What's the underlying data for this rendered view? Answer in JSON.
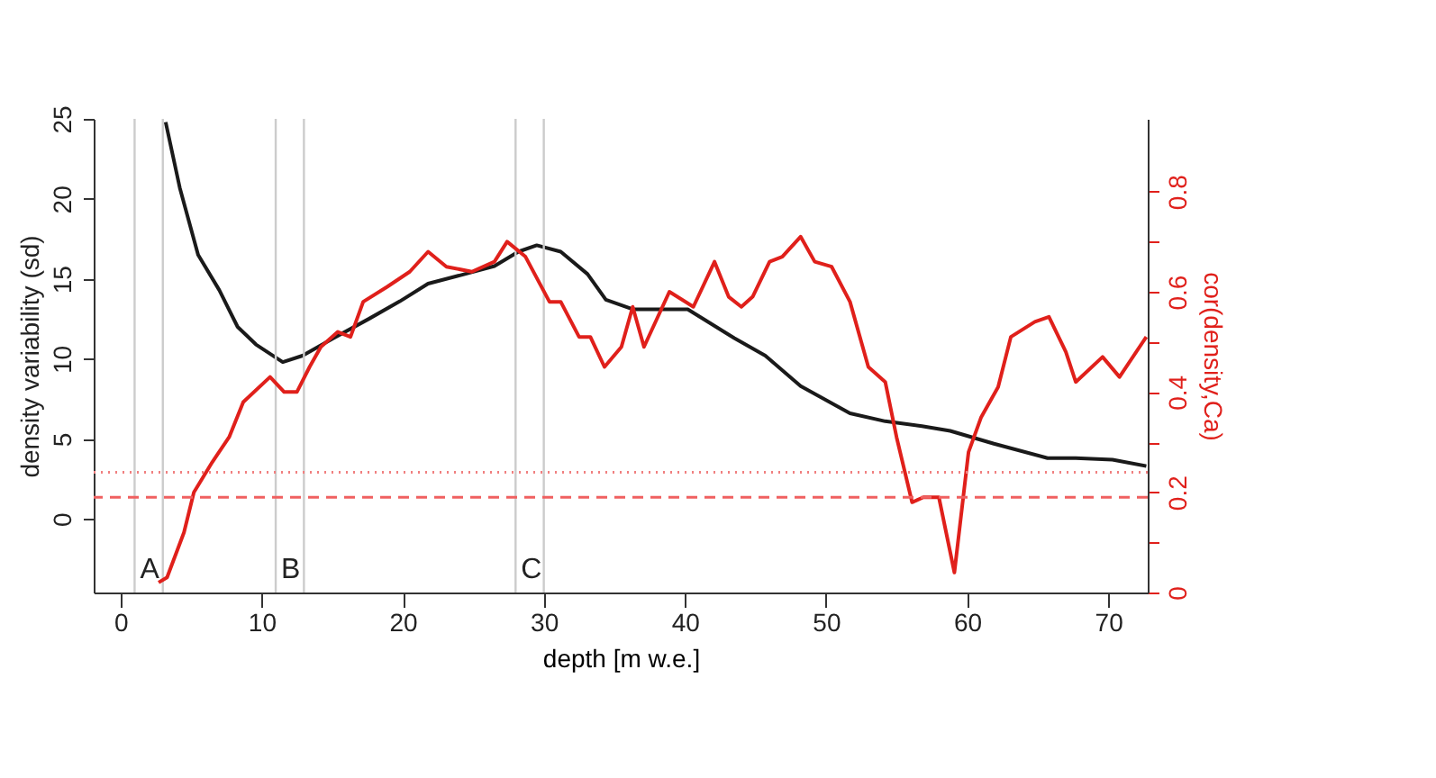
{
  "chart_data": {
    "type": "line",
    "xlabel": "depth [m w.e.]",
    "ylabel": "density variability (sd)",
    "y2label": "cor(density,Ca)",
    "xlim": [
      -1.9,
      72.8
    ],
    "xticks": [
      0,
      10,
      20,
      30,
      40,
      50,
      60,
      70
    ],
    "ylim": [
      -4.6,
      25
    ],
    "yticks": [
      0,
      5,
      10,
      15,
      20,
      25
    ],
    "y2lim": [
      0,
      0.945
    ],
    "y2ticks": [
      0,
      {
        "value": 0.1,
        "label": null
      },
      0.2,
      {
        "value": 0.3,
        "label": null
      },
      0.4,
      {
        "value": 0.5,
        "label": null
      },
      0.6,
      {
        "value": 0.7,
        "label": null
      },
      0.8
    ],
    "grid": false,
    "marker": "none",
    "line_style": "solid",
    "series": [
      {
        "color": "#1a1a1a",
        "x": [
          3.2,
          4.2,
          5.5,
          7.0,
          8.3,
          9.6,
          11.5,
          12.9,
          15.1,
          17.6,
          19.8,
          21.8,
          24.4,
          26.5,
          28.2,
          29.5,
          31.2,
          33.1,
          34.4,
          36.3,
          40.2,
          43.5,
          45.7,
          48.2,
          51.7,
          54.2,
          56.8,
          58.8,
          61.9,
          65.7,
          67.7,
          70.3,
          72.7
        ],
        "values": [
          24.8,
          20.7,
          16.5,
          14.3,
          12.0,
          10.9,
          9.8,
          10.2,
          11.3,
          12.5,
          13.6,
          14.7,
          15.3,
          15.8,
          16.7,
          17.1,
          16.7,
          15.3,
          13.7,
          13.1,
          13.1,
          11.3,
          10.2,
          8.3,
          6.6,
          6.1,
          5.8,
          5.5,
          4.7,
          3.8,
          3.8,
          3.7,
          3.3
        ]
      },
      {
        "color": "#e0201b",
        "axis": "y2",
        "x": [
          2.7,
          3.3,
          4.5,
          5.2,
          6.5,
          7.7,
          8.7,
          10.6,
          11.6,
          12.5,
          13.4,
          14.2,
          15.4,
          16.3,
          17.2,
          18.9,
          20.5,
          21.8,
          23.1,
          24.9,
          26.5,
          27.4,
          28.7,
          30.4,
          31.2,
          32.5,
          33.3,
          34.3,
          35.5,
          36.3,
          37.1,
          38.9,
          40.6,
          42.1,
          43.1,
          44.0,
          44.8,
          46.0,
          46.9,
          48.2,
          49.2,
          50.4,
          51.7,
          53.0,
          54.2,
          55.0,
          56.1,
          56.9,
          58.0,
          59.1,
          60.1,
          61.0,
          62.2,
          63.1,
          64.8,
          65.8,
          67.0,
          67.7,
          69.6,
          70.8,
          72.7
        ],
        "values": [
          0.02,
          0.03,
          0.12,
          0.2,
          0.26,
          0.31,
          0.38,
          0.43,
          0.4,
          0.4,
          0.45,
          0.49,
          0.52,
          0.51,
          0.58,
          0.61,
          0.64,
          0.68,
          0.65,
          0.64,
          0.66,
          0.7,
          0.67,
          0.58,
          0.58,
          0.51,
          0.51,
          0.45,
          0.49,
          0.57,
          0.49,
          0.6,
          0.57,
          0.66,
          0.59,
          0.57,
          0.59,
          0.66,
          0.67,
          0.71,
          0.66,
          0.65,
          0.58,
          0.45,
          0.42,
          0.31,
          0.18,
          0.19,
          0.19,
          0.04,
          0.28,
          0.35,
          0.41,
          0.51,
          0.54,
          0.55,
          0.48,
          0.42,
          0.47,
          0.43,
          0.51
        ]
      }
    ],
    "ref_lines": [
      {
        "axis": "x",
        "value": 1,
        "color": "#cccccc",
        "label": "A"
      },
      {
        "axis": "x",
        "value": 3,
        "color": "#cccccc"
      },
      {
        "axis": "x",
        "value": 11,
        "color": "#cccccc",
        "label": "B"
      },
      {
        "axis": "x",
        "value": 13,
        "color": "#cccccc"
      },
      {
        "axis": "x",
        "value": 28,
        "color": "#cccccc",
        "label": "C"
      },
      {
        "axis": "x",
        "value": 30,
        "color": "#cccccc"
      },
      {
        "axis": "y2",
        "value": 0.24,
        "color": "#f08080",
        "line_style": "dotted"
      },
      {
        "axis": "y2",
        "value": 0.19,
        "color": "#f06060",
        "line_style": "dashed"
      }
    ]
  }
}
